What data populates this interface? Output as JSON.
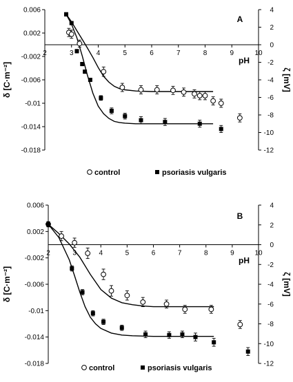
{
  "chart_data": [
    {
      "type": "scatter",
      "panel_label": "A",
      "xlabel": "pH",
      "ylabel": "δ [C·m⁻²]",
      "y2label": "ζ [mV]",
      "xlim": [
        2,
        10
      ],
      "ylim": [
        -0.018,
        0.006
      ],
      "y2lim": [
        -12,
        4
      ],
      "x_ticks": [
        2,
        3,
        4,
        5,
        6,
        7,
        8,
        9,
        10
      ],
      "y_ticks": [
        "0.006",
        "0.002",
        "-0.002",
        "-0.006",
        "-0.01",
        "-0.014",
        "-0.018"
      ],
      "y2_ticks": [
        "4",
        "2",
        "0",
        "-2",
        "-4",
        "-6",
        "-8",
        "-10",
        "-12"
      ],
      "legend_position": "bottom",
      "series": [
        {
          "name": "control",
          "marker": "open-circle",
          "x": [
            2.9,
            3.0,
            3.3,
            4.2,
            4.9,
            5.6,
            6.2,
            6.8,
            7.2,
            7.6,
            7.8,
            8.0,
            8.3,
            8.6,
            9.3
          ],
          "y": [
            0.0021,
            0.0018,
            0.0002,
            -0.0046,
            -0.0073,
            -0.0077,
            -0.0077,
            -0.0078,
            -0.0081,
            -0.0084,
            -0.0087,
            -0.0087,
            -0.0096,
            -0.01,
            -0.0125
          ],
          "yerr": [
            0.0007,
            0.0007,
            0.0006,
            0.0008,
            0.0007,
            0.0007,
            0.0007,
            0.0007,
            0.0007,
            0.0007,
            0.0007,
            0.0007,
            0.0007,
            0.0007,
            0.0007
          ]
        },
        {
          "name": "psoriasis vulgaris",
          "marker": "filled-square",
          "x": [
            2.8,
            3.0,
            3.2,
            3.4,
            3.5,
            3.7,
            4.1,
            4.5,
            5.0,
            5.6,
            6.5,
            7.8,
            8.6
          ],
          "y": [
            0.0052,
            0.0037,
            -0.0011,
            -0.0033,
            -0.0046,
            -0.006,
            -0.0091,
            -0.0113,
            -0.0122,
            -0.0129,
            -0.0132,
            -0.0135,
            -0.0144
          ],
          "yerr": [
            0.0003,
            0.0003,
            0.0003,
            0.0003,
            0.0003,
            0.0003,
            0.0004,
            0.0005,
            0.0005,
            0.0006,
            0.0006,
            0.0006,
            0.0006
          ]
        }
      ],
      "fits": [
        {
          "x": [
            2.85,
            3.0,
            3.2,
            3.4,
            3.6,
            3.8,
            4.0,
            4.2,
            4.4,
            4.6,
            4.8,
            5.0,
            5.4,
            6.0,
            7.0,
            8.3
          ],
          "y": [
            0.0049,
            0.0039,
            0.0024,
            0.0009,
            -0.0006,
            -0.0022,
            -0.0039,
            -0.0054,
            -0.0064,
            -0.0071,
            -0.0075,
            -0.0077,
            -0.0079,
            -0.008,
            -0.008,
            -0.008
          ]
        },
        {
          "x": [
            2.8,
            3.0,
            3.2,
            3.4,
            3.6,
            3.8,
            4.0,
            4.2,
            4.4,
            4.6,
            4.8,
            5.0,
            5.4,
            6.0,
            7.0,
            8.3
          ],
          "y": [
            0.0052,
            0.0035,
            0.0012,
            -0.0019,
            -0.0053,
            -0.0083,
            -0.0105,
            -0.0118,
            -0.0126,
            -0.0131,
            -0.0133,
            -0.0134,
            -0.0135,
            -0.0135,
            -0.0135,
            -0.0135
          ]
        }
      ]
    },
    {
      "type": "scatter",
      "panel_label": "B",
      "xlabel": "pH",
      "ylabel": "δ [C·m⁻²]",
      "y2label": "ζ [mV]",
      "xlim": [
        2,
        10
      ],
      "ylim": [
        -0.018,
        0.006
      ],
      "y2lim": [
        -12,
        4
      ],
      "x_ticks": [
        2,
        3,
        4,
        5,
        6,
        7,
        8,
        9,
        10
      ],
      "y_ticks": [
        "0.006",
        "0.002",
        "-0.002",
        "-0.006",
        "-0.01",
        "-0.014",
        "-0.018"
      ],
      "y2_ticks": [
        "4",
        "2",
        "0",
        "-2",
        "-4",
        "-6",
        "-8",
        "-10",
        "-12"
      ],
      "legend_position": "bottom",
      "series": [
        {
          "name": "control",
          "marker": "open-circle",
          "x": [
            2.0,
            2.5,
            3.0,
            3.5,
            4.1,
            4.4,
            5.0,
            5.6,
            6.5,
            7.2,
            8.2,
            9.3
          ],
          "y": [
            0.0031,
            0.0013,
            0.0003,
            -0.0013,
            -0.0045,
            -0.007,
            -0.0077,
            -0.0087,
            -0.009,
            -0.0098,
            -0.0098,
            -0.0121
          ],
          "yerr": [
            0.0004,
            0.0007,
            0.0007,
            0.0008,
            0.0008,
            0.0008,
            0.0007,
            0.0007,
            0.0006,
            0.0006,
            0.0006,
            0.0006
          ]
        },
        {
          "name": "psoriasis vulgaris",
          "marker": "filled-square",
          "x": [
            2.0,
            2.9,
            3.3,
            3.7,
            4.1,
            4.8,
            5.7,
            6.6,
            7.1,
            7.6,
            8.3,
            9.6
          ],
          "y": [
            0.0031,
            -0.0036,
            -0.0072,
            -0.0104,
            -0.0117,
            -0.0126,
            -0.0136,
            -0.0137,
            -0.0136,
            -0.014,
            -0.0148,
            -0.0162
          ],
          "yerr": [
            0.0004,
            0.0004,
            0.0004,
            0.0004,
            0.0004,
            0.0004,
            0.0005,
            0.0005,
            0.0005,
            0.0006,
            0.0006,
            0.0006
          ]
        }
      ],
      "fits": [
        {
          "x": [
            2.0,
            2.4,
            2.8,
            3.2,
            3.6,
            4.0,
            4.4,
            4.8,
            5.2,
            5.6,
            6.0,
            7.0,
            8.3
          ],
          "y": [
            0.0031,
            0.0017,
            0.0001,
            -0.0019,
            -0.0045,
            -0.0068,
            -0.0081,
            -0.0088,
            -0.0091,
            -0.0093,
            -0.0094,
            -0.0094,
            -0.0094
          ]
        },
        {
          "x": [
            2.0,
            2.4,
            2.8,
            3.0,
            3.2,
            3.4,
            3.6,
            3.8,
            4.0,
            4.4,
            4.8,
            5.2,
            6.0,
            7.0,
            8.3
          ],
          "y": [
            0.0031,
            0.0011,
            -0.0023,
            -0.0047,
            -0.0072,
            -0.0094,
            -0.011,
            -0.012,
            -0.0127,
            -0.0134,
            -0.0137,
            -0.0138,
            -0.0139,
            -0.0139,
            -0.0139
          ]
        }
      ]
    }
  ]
}
